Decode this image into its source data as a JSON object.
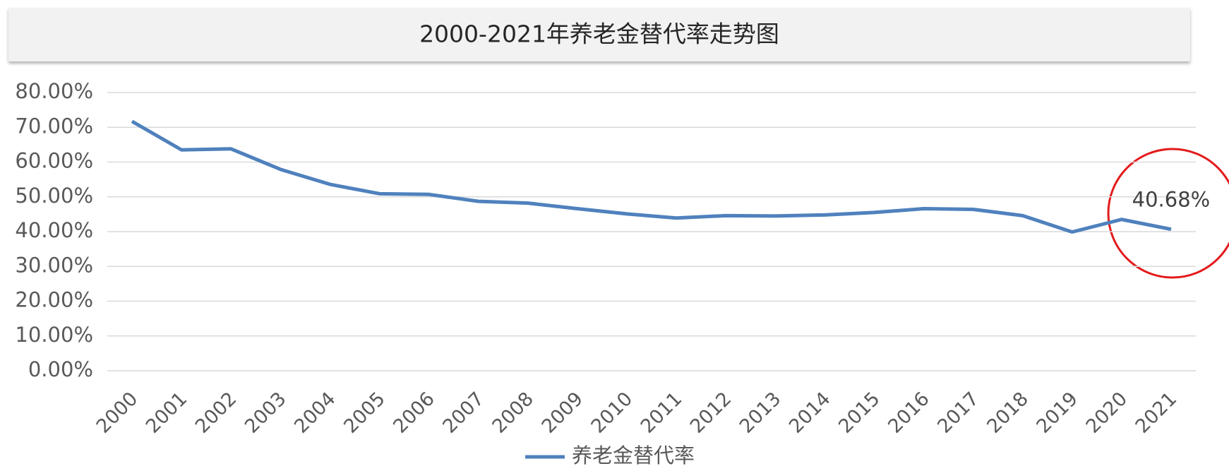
{
  "chart_data": {
    "type": "line",
    "title": "2000-2021年养老金替代率走势图",
    "categories": [
      "2000",
      "2001",
      "2002",
      "2003",
      "2004",
      "2005",
      "2006",
      "2007",
      "2008",
      "2009",
      "2010",
      "2011",
      "2012",
      "2013",
      "2014",
      "2015",
      "2016",
      "2017",
      "2018",
      "2019",
      "2020",
      "2021"
    ],
    "series": [
      {
        "name": "养老金替代率",
        "color": "#4f81bd",
        "values": [
          71.7,
          63.5,
          63.8,
          57.9,
          53.6,
          50.9,
          50.7,
          48.7,
          48.2,
          46.6,
          45.1,
          43.9,
          44.6,
          44.5,
          44.8,
          45.5,
          46.6,
          46.4,
          44.6,
          39.9,
          43.5,
          40.68
        ],
        "value_labels": [
          null,
          null,
          null,
          null,
          null,
          null,
          null,
          null,
          null,
          null,
          null,
          null,
          null,
          null,
          null,
          null,
          null,
          null,
          null,
          null,
          null,
          "40.68%"
        ]
      }
    ],
    "ylim": [
      0,
      80
    ],
    "yticks": [
      {
        "value": 0,
        "label": "0.00%"
      },
      {
        "value": 10,
        "label": "10.00%"
      },
      {
        "value": 20,
        "label": "20.00%"
      },
      {
        "value": 30,
        "label": "30.00%"
      },
      {
        "value": 40,
        "label": "40.00%"
      },
      {
        "value": 50,
        "label": "50.00%"
      },
      {
        "value": 60,
        "label": "60.00%"
      },
      {
        "value": 70,
        "label": "70.00%"
      },
      {
        "value": 80,
        "label": "80.00%"
      }
    ],
    "grid": true,
    "legend": "bottom"
  }
}
